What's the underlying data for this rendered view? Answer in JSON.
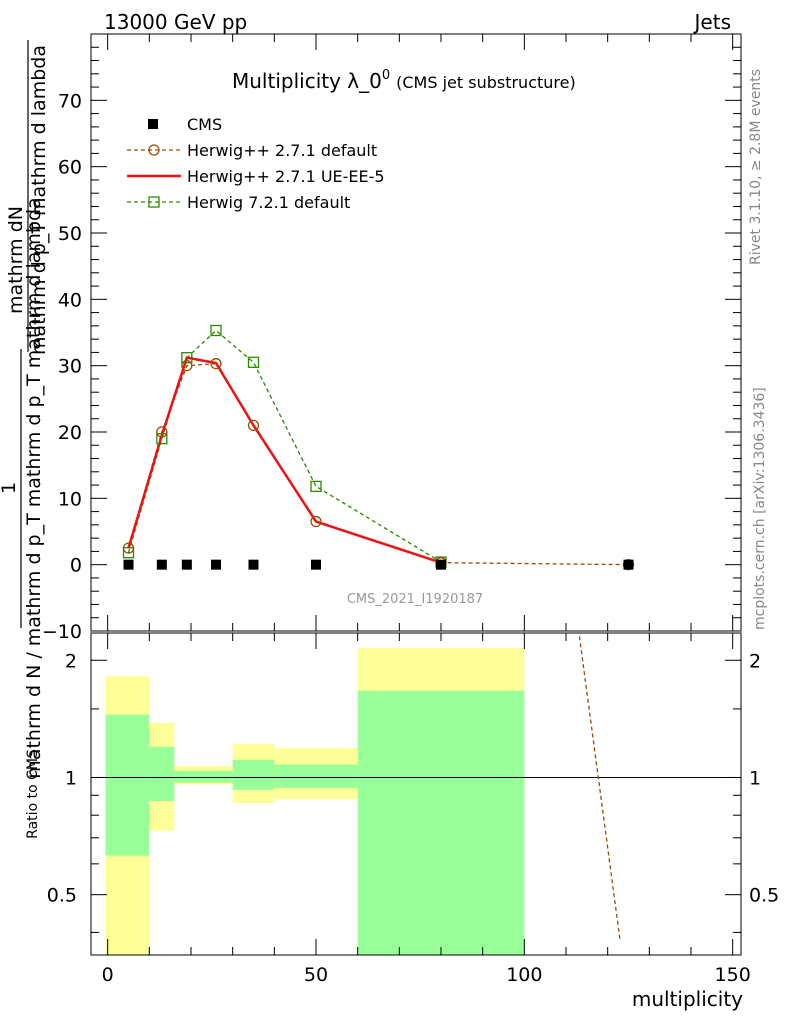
{
  "header": {
    "left": "13000 GeV pp",
    "right": "Jets"
  },
  "side": {
    "rivet": "Rivet 3.1.10, ≥ 2.8M events",
    "mcplots": "mcplots.cern.ch [arXiv:1306.3436]"
  },
  "colors": {
    "cms": "#000000",
    "herwigpp_default": "#9a4a00",
    "herwigpp_ueee5": "#ee1111",
    "herwig7": "#2a8a00",
    "band_outer": "#ffff99",
    "band_inner": "#99ff99"
  },
  "chart_data": [
    {
      "type": "line",
      "title": "Multiplicity λ_0",
      "title_sup": "0",
      "title_suffix": "(CMS jet substructure)",
      "ylabel_numerator": "mathrm dN",
      "ylabel_fraction_one": "1",
      "ylabel_line2": "mathrm d p_T mathrm d lambda",
      "ylabel_denominator": "mathrm d N / mathrm d p_T mathrm d p_T mathrm d lambda",
      "analysis_label": "CMS_2021_I1920187",
      "xlim": [
        -4,
        152
      ],
      "ylim": [
        -10,
        80
      ],
      "yticks": [
        -10,
        0,
        10,
        20,
        30,
        40,
        50,
        60,
        70
      ],
      "legend_placement": "top-left",
      "series": [
        {
          "name": "CMS",
          "marker": "filled-square",
          "x": [
            5,
            13,
            19,
            26,
            35,
            50,
            80,
            125
          ],
          "y": [
            0,
            0,
            0,
            0,
            0,
            0,
            0,
            0
          ]
        },
        {
          "name": "Herwig++ 2.7.1 default",
          "marker": "open-circle",
          "line": "dashed",
          "x": [
            5,
            13,
            19,
            26,
            35,
            50,
            80,
            125
          ],
          "y": [
            2.5,
            20,
            30,
            30.3,
            21,
            6.5,
            0.3,
            0
          ]
        },
        {
          "name": "Herwig++ 2.7.1 UE-EE-5",
          "marker": "none",
          "line": "solid",
          "x": [
            5,
            13,
            19,
            26,
            35,
            50,
            80
          ],
          "y": [
            2.5,
            19.5,
            31.2,
            30.4,
            21,
            6.5,
            0.3
          ]
        },
        {
          "name": "Herwig 7.2.1 default",
          "marker": "open-square",
          "line": "dashed",
          "x": [
            5,
            13,
            19,
            26,
            35,
            50,
            80
          ],
          "y": [
            1.8,
            19,
            31.2,
            35.3,
            30.5,
            11.8,
            0.4
          ]
        }
      ]
    },
    {
      "type": "area",
      "ylabel": "Ratio to CMS",
      "xlabel": "multiplicity",
      "xlim": [
        -4,
        152
      ],
      "ylim": [
        0.35,
        2.35
      ],
      "log_y": true,
      "yticks": [
        0.5,
        1,
        2
      ],
      "xticks": [
        0,
        50,
        100,
        150
      ],
      "bands": [
        {
          "xlo": -0.5,
          "xhi": 10,
          "outer": [
            0.35,
            1.82
          ],
          "inner": [
            0.63,
            1.45
          ]
        },
        {
          "xlo": 10,
          "xhi": 16,
          "outer": [
            0.73,
            1.38
          ],
          "inner": [
            0.87,
            1.2
          ]
        },
        {
          "xlo": 16,
          "xhi": 30,
          "outer": [
            0.96,
            1.07
          ],
          "inner": [
            0.97,
            1.04
          ]
        },
        {
          "xlo": 30,
          "xhi": 40,
          "outer": [
            0.86,
            1.22
          ],
          "inner": [
            0.93,
            1.11
          ]
        },
        {
          "xlo": 40,
          "xhi": 60,
          "outer": [
            0.88,
            1.19
          ],
          "inner": [
            0.94,
            1.08
          ]
        },
        {
          "xlo": 60,
          "xhi": 100,
          "outer": [
            0.35,
            2.15
          ],
          "inner": [
            0.35,
            1.67
          ]
        }
      ],
      "series": [
        {
          "name": "Herwig++ 2.7.1 default",
          "line": "dashed",
          "x": [
            113,
            123
          ],
          "y": [
            2.4,
            0.38
          ]
        }
      ]
    }
  ]
}
